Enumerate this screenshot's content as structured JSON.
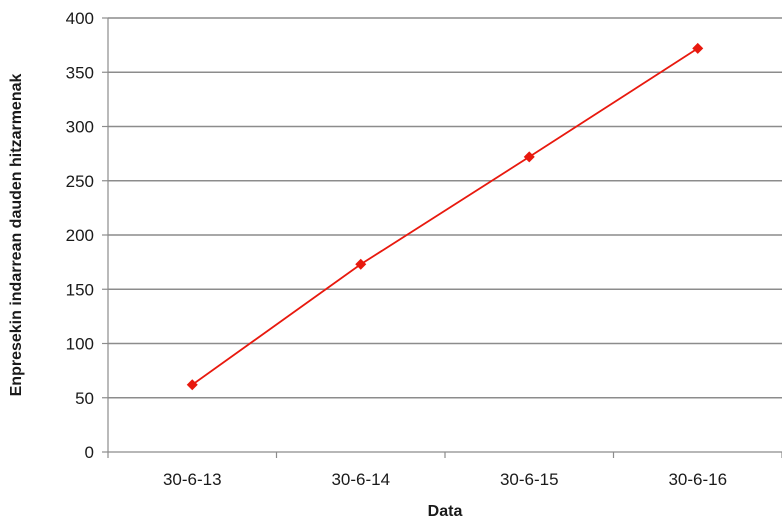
{
  "chart_data": {
    "type": "line",
    "title": "",
    "xlabel": "Data",
    "ylabel": "Enpresekin indarrean dauden hitzarmenak",
    "categories": [
      "30-6-13",
      "30-6-14",
      "30-6-15",
      "30-6-16"
    ],
    "series": [
      {
        "values": [
          62,
          173,
          272,
          372
        ],
        "color": "#e8190e",
        "marker": "diamond"
      }
    ],
    "ylim": [
      0,
      400
    ],
    "yticks": [
      0,
      50,
      100,
      150,
      200,
      250,
      300,
      350,
      400
    ],
    "grid": "horizontal",
    "legend": "none"
  }
}
